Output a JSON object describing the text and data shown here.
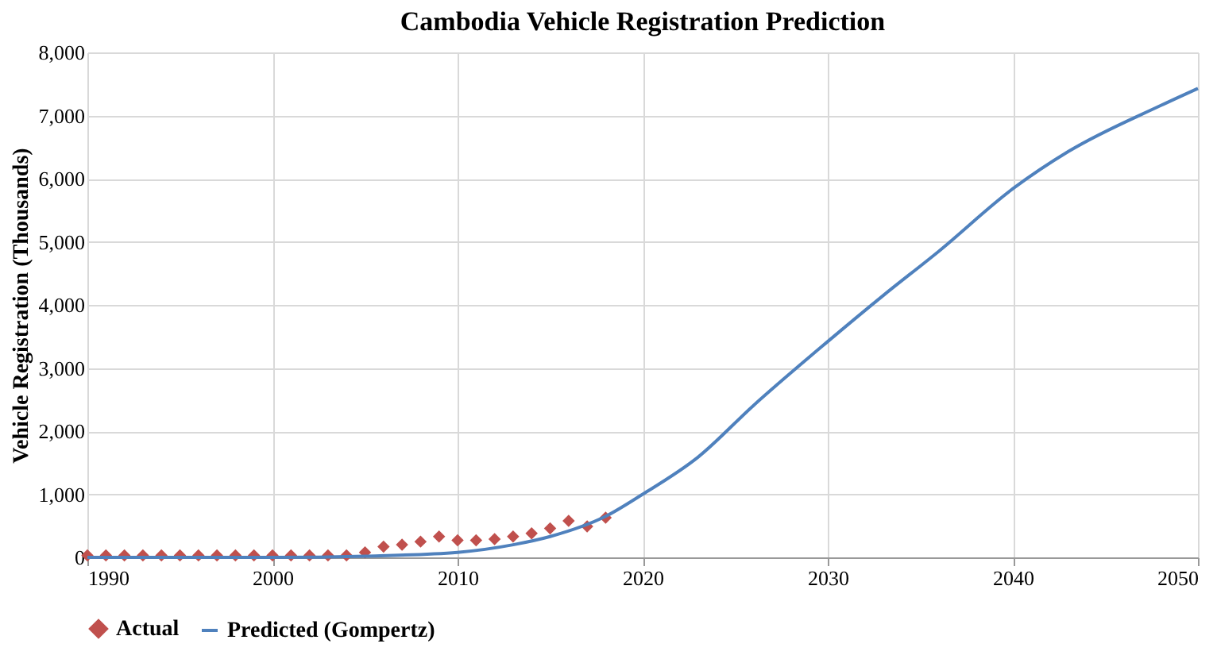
{
  "chart_data": {
    "type": "scatter",
    "title": "Cambodia Vehicle Registration Prediction",
    "ylabel": "Vehicle Registration (Thousands)",
    "xlim": [
      1990,
      2050
    ],
    "xticks": [
      1990,
      2000,
      2010,
      2020,
      2030,
      2040,
      2050
    ],
    "ylim": [
      0,
      8000
    ],
    "yticks": [
      0,
      {
        "value": 1000,
        "label": "1,000"
      },
      {
        "value": 2000,
        "label": "2,000"
      },
      {
        "value": 3000,
        "label": "3,000"
      },
      {
        "value": 4000,
        "label": "4,000"
      },
      {
        "value": 5000,
        "label": "5,000"
      },
      {
        "value": 6000,
        "label": "6,000"
      },
      {
        "value": 7000,
        "label": "7,000"
      },
      {
        "value": 8000,
        "label": "8,000"
      }
    ],
    "grid": true,
    "legend": "bottom",
    "series": [
      {
        "name": "Actual",
        "marker": "diamond",
        "color": "#c0504d",
        "x": [
          1990,
          1991,
          1992,
          1993,
          1994,
          1995,
          1996,
          1997,
          1998,
          1999,
          2000,
          2001,
          2002,
          2003,
          2004,
          2005,
          2006,
          2007,
          2008,
          2009,
          2010,
          2011,
          2012,
          2013,
          2014,
          2015,
          2016,
          2017,
          2018
        ],
        "values": [
          30,
          30,
          30,
          30,
          30,
          30,
          30,
          30,
          30,
          30,
          30,
          30,
          30,
          30,
          30,
          80,
          170,
          200,
          250,
          330,
          270,
          270,
          290,
          330,
          380,
          460,
          580,
          490,
          630
        ]
      },
      {
        "name": "Predicted (Gompertz)",
        "type": "line",
        "marker": "none",
        "color": "#4f81bd",
        "x": [
          1990,
          2000,
          2005,
          2010,
          2013,
          2015,
          2018,
          2020,
          2023,
          2026,
          2030,
          2033,
          2036,
          2040,
          2043,
          2048,
          2050
        ],
        "values": [
          0,
          0,
          20,
          80,
          200,
          330,
          650,
          1000,
          1590,
          2410,
          3420,
          4150,
          4850,
          5840,
          6430,
          7160,
          7430
        ]
      }
    ]
  }
}
